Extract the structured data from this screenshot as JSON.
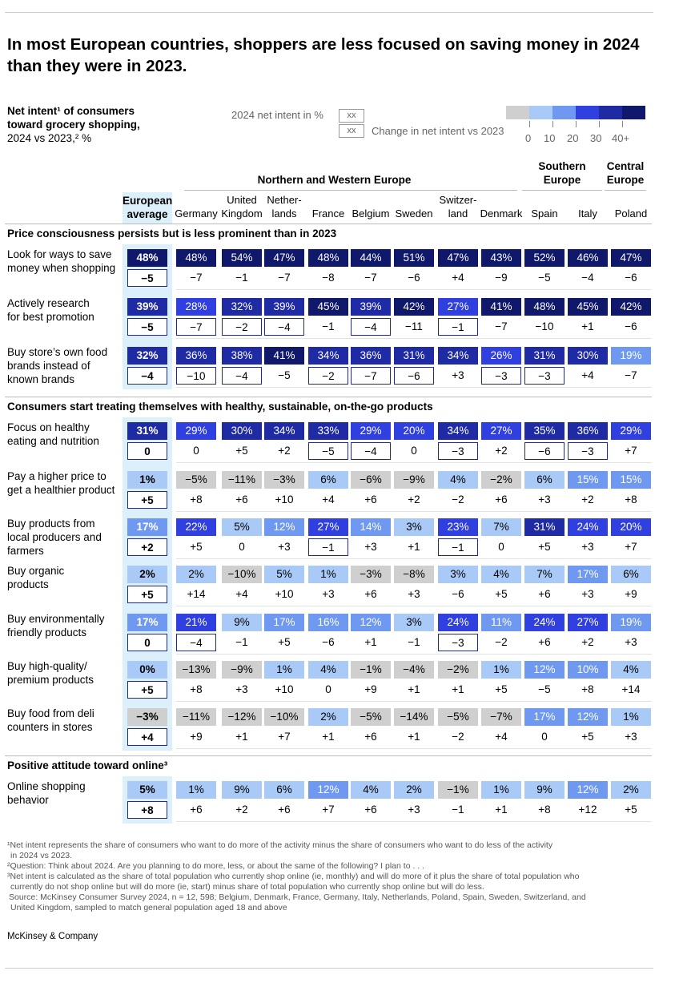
{
  "title": "In most European countries, shoppers are less focused on saving money in 2024 than they were in 2023.",
  "subtitle": {
    "line1": "Net intent¹ of consumers",
    "line2": "toward grocery shopping,",
    "line3": "2024 vs 2023,² %"
  },
  "legend": {
    "value_label": "2024 net intent in %",
    "change_label": "Change in net intent vs 2023",
    "box_text": "xx",
    "scale_ticks": [
      "0",
      "10",
      "20",
      "30",
      "40+"
    ],
    "scale_colors": [
      "#cfcfcf",
      "#a9c9f7",
      "#6f99f0",
      "#2f3fe0",
      "#1f2aa5",
      "#10186b"
    ]
  },
  "regions": {
    "north_west": "Northern and Western Europe",
    "south_line1": "Southern",
    "south_line2": "Europe",
    "central_line1": "Central",
    "central_line2": "Europe"
  },
  "eu_header": {
    "line1": "European",
    "line2": "average"
  },
  "columns": [
    {
      "l1": "",
      "l2": "Germany"
    },
    {
      "l1": "United",
      "l2": "Kingdom"
    },
    {
      "l1": "Nether-",
      "l2": "lands"
    },
    {
      "l1": "",
      "l2": "France"
    },
    {
      "l1": "",
      "l2": "Belgium"
    },
    {
      "l1": "",
      "l2": "Sweden"
    },
    {
      "l1": "Switzer-",
      "l2": "land"
    },
    {
      "l1": "",
      "l2": "Denmark"
    },
    {
      "l1": "",
      "l2": "Spain"
    },
    {
      "l1": "",
      "l2": "Italy"
    },
    {
      "l1": "",
      "l2": "Poland"
    }
  ],
  "sections": [
    {
      "title": "Price consciousness persists but is less prominent than in 2023",
      "rows": [
        {
          "label": [
            "Look for ways to save",
            "money when shopping"
          ],
          "eu": [
            "48%",
            "−5"
          ],
          "vals": [
            "48%",
            "54%",
            "47%",
            "48%",
            "44%",
            "51%",
            "47%",
            "43%",
            "52%",
            "46%",
            "47%"
          ],
          "chg": [
            "−7",
            "−1",
            "−7",
            "−8",
            "−7",
            "−6",
            "+4",
            "−9",
            "−5",
            "−4",
            "−6"
          ]
        },
        {
          "label": [
            "Actively research",
            "for best promotion"
          ],
          "eu": [
            "39%",
            "−5"
          ],
          "vals": [
            "28%",
            "32%",
            "39%",
            "45%",
            "39%",
            "42%",
            "27%",
            "41%",
            "48%",
            "45%",
            "42%"
          ],
          "chg": [
            "−7",
            "−2",
            "−4",
            "−1",
            "−4",
            "−11",
            "−1",
            "−7",
            "−10",
            "+1",
            "−6"
          ]
        },
        {
          "label": [
            "Buy store’s own food",
            "brands instead of",
            "known brands"
          ],
          "eu": [
            "32%",
            "−4"
          ],
          "vals": [
            "36%",
            "38%",
            "41%",
            "34%",
            "36%",
            "31%",
            "34%",
            "26%",
            "31%",
            "30%",
            "19%"
          ],
          "chg": [
            "−10",
            "−4",
            "−5",
            "−2",
            "−7",
            "−6",
            "+3",
            "−3",
            "−3",
            "+4",
            "−7"
          ]
        }
      ]
    },
    {
      "title": "Consumers start treating themselves with healthy, sustainable, on-the-go products",
      "rows": [
        {
          "label": [
            "Focus on healthy",
            "eating and nutrition"
          ],
          "eu": [
            "31%",
            "0"
          ],
          "vals": [
            "29%",
            "30%",
            "34%",
            "33%",
            "29%",
            "20%",
            "34%",
            "27%",
            "35%",
            "36%",
            "29%"
          ],
          "chg": [
            "0",
            "+5",
            "+2",
            "−5",
            "−4",
            "0",
            "−3",
            "+2",
            "−6",
            "−3",
            "+7"
          ]
        },
        {
          "label": [
            "Pay a higher price to",
            "get a healthier product"
          ],
          "eu": [
            "1%",
            "+5"
          ],
          "vals": [
            "−5%",
            "−11%",
            "−3%",
            "6%",
            "−6%",
            "−9%",
            "4%",
            "−2%",
            "6%",
            "15%",
            "15%"
          ],
          "chg": [
            "+8",
            "+6",
            "+10",
            "+4",
            "+6",
            "+2",
            "−2",
            "+6",
            "+3",
            "+2",
            "+8"
          ]
        },
        {
          "label": [
            "Buy products from",
            "local producers and",
            "farmers"
          ],
          "eu": [
            "17%",
            "+2"
          ],
          "vals": [
            "22%",
            "5%",
            "12%",
            "27%",
            "14%",
            "3%",
            "23%",
            "7%",
            "31%",
            "24%",
            "20%"
          ],
          "chg": [
            "+5",
            "0",
            "+3",
            "−1",
            "+3",
            "+1",
            "−1",
            "0",
            "+5",
            "+3",
            "+7"
          ]
        },
        {
          "label": [
            "Buy organic",
            "products"
          ],
          "eu": [
            "2%",
            "+5"
          ],
          "vals": [
            "2%",
            "−10%",
            "5%",
            "1%",
            "−3%",
            "−8%",
            "3%",
            "4%",
            "7%",
            "17%",
            "6%"
          ],
          "chg": [
            "+14",
            "+4",
            "+10",
            "+3",
            "+6",
            "+3",
            "−6",
            "+5",
            "+6",
            "+3",
            "+9"
          ]
        },
        {
          "label": [
            "Buy environmentally",
            "friendly products"
          ],
          "eu": [
            "17%",
            "0"
          ],
          "vals": [
            "21%",
            "9%",
            "17%",
            "16%",
            "12%",
            "3%",
            "24%",
            "11%",
            "24%",
            "27%",
            "19%"
          ],
          "chg": [
            "−4",
            "−1",
            "+5",
            "−6",
            "+1",
            "−1",
            "−3",
            "−2",
            "+6",
            "+2",
            "+3"
          ]
        },
        {
          "label": [
            "Buy high-quality/",
            "premium products"
          ],
          "eu": [
            "0%",
            "+5"
          ],
          "vals": [
            "−13%",
            "−9%",
            "1%",
            "4%",
            "−1%",
            "−4%",
            "−2%",
            "1%",
            "12%",
            "10%",
            "4%"
          ],
          "chg": [
            "+8",
            "+3",
            "+10",
            "0",
            "+9",
            "+1",
            "+1",
            "+5",
            "−5",
            "+8",
            "+14"
          ]
        },
        {
          "label": [
            "Buy food from deli",
            "counters in stores"
          ],
          "eu": [
            "−3%",
            "+4"
          ],
          "vals": [
            "−11%",
            "−12%",
            "−10%",
            "2%",
            "−5%",
            "−14%",
            "−5%",
            "−7%",
            "17%",
            "12%",
            "1%"
          ],
          "chg": [
            "+9",
            "+1",
            "+7",
            "+1",
            "+6",
            "+1",
            "−2",
            "+4",
            "0",
            "+5",
            "+3"
          ]
        }
      ]
    },
    {
      "title": "Positive attitude toward online³",
      "rows": [
        {
          "label": [
            "Online shopping",
            "behavior"
          ],
          "eu": [
            "5%",
            "+8"
          ],
          "vals": [
            "1%",
            "9%",
            "6%",
            "12%",
            "4%",
            "2%",
            "−1%",
            "1%",
            "9%",
            "12%",
            "2%"
          ],
          "chg": [
            "+6",
            "+2",
            "+6",
            "+7",
            "+6",
            "+3",
            "−1",
            "+1",
            "+8",
            "+12",
            "+5"
          ]
        }
      ]
    }
  ],
  "chart_data": {
    "type": "table",
    "title": "Net intent of consumers toward grocery shopping, 2024 vs 2023, %",
    "columns": [
      "European average",
      "Germany",
      "United Kingdom",
      "Netherlands",
      "France",
      "Belgium",
      "Sweden",
      "Switzerland",
      "Denmark",
      "Spain",
      "Italy",
      "Poland"
    ],
    "rows": [
      {
        "name": "Look for ways to save money when shopping",
        "net_intent_2024": [
          48,
          48,
          54,
          47,
          48,
          44,
          51,
          47,
          43,
          52,
          46,
          47
        ],
        "change_vs_2023": [
          -5,
          -7,
          -1,
          -7,
          -8,
          -7,
          -6,
          4,
          -9,
          -5,
          -4,
          -6
        ]
      },
      {
        "name": "Actively research for best promotion",
        "net_intent_2024": [
          39,
          28,
          32,
          39,
          45,
          39,
          42,
          27,
          41,
          48,
          45,
          42
        ],
        "change_vs_2023": [
          -5,
          -7,
          -2,
          -4,
          -1,
          -4,
          -11,
          -1,
          -7,
          -10,
          1,
          -6
        ]
      },
      {
        "name": "Buy store's own food brands instead of known brands",
        "net_intent_2024": [
          32,
          36,
          38,
          41,
          34,
          36,
          31,
          34,
          26,
          31,
          30,
          19
        ],
        "change_vs_2023": [
          -4,
          -10,
          -4,
          -5,
          -2,
          -7,
          -6,
          3,
          -3,
          -3,
          4,
          -7
        ]
      },
      {
        "name": "Focus on healthy eating and nutrition",
        "net_intent_2024": [
          31,
          29,
          30,
          34,
          33,
          29,
          20,
          34,
          27,
          35,
          36,
          29
        ],
        "change_vs_2023": [
          0,
          0,
          5,
          2,
          -5,
          -4,
          0,
          -3,
          2,
          -6,
          -3,
          7
        ]
      },
      {
        "name": "Pay a higher price to get a healthier product",
        "net_intent_2024": [
          1,
          -5,
          -11,
          -3,
          6,
          -6,
          -9,
          4,
          -2,
          6,
          15,
          15
        ],
        "change_vs_2023": [
          5,
          8,
          6,
          10,
          4,
          6,
          2,
          -2,
          6,
          3,
          2,
          8
        ]
      },
      {
        "name": "Buy products from local producers and farmers",
        "net_intent_2024": [
          17,
          22,
          5,
          12,
          27,
          14,
          3,
          23,
          7,
          31,
          24,
          20
        ],
        "change_vs_2023": [
          2,
          5,
          0,
          3,
          -1,
          3,
          1,
          -1,
          0,
          5,
          3,
          7
        ]
      },
      {
        "name": "Buy organic products",
        "net_intent_2024": [
          2,
          2,
          -10,
          5,
          1,
          -3,
          -8,
          3,
          4,
          7,
          17,
          6
        ],
        "change_vs_2023": [
          5,
          14,
          4,
          10,
          3,
          6,
          3,
          -6,
          5,
          6,
          3,
          9
        ]
      },
      {
        "name": "Buy environmentally friendly products",
        "net_intent_2024": [
          17,
          21,
          9,
          17,
          16,
          12,
          3,
          24,
          11,
          24,
          27,
          19
        ],
        "change_vs_2023": [
          0,
          -4,
          -1,
          5,
          -6,
          1,
          -1,
          -3,
          -2,
          6,
          2,
          3
        ]
      },
      {
        "name": "Buy high-quality/premium products",
        "net_intent_2024": [
          0,
          -13,
          -9,
          1,
          4,
          -1,
          -4,
          -2,
          1,
          12,
          10,
          4
        ],
        "change_vs_2023": [
          5,
          8,
          3,
          10,
          0,
          9,
          1,
          1,
          5,
          -5,
          8,
          14
        ]
      },
      {
        "name": "Buy food from deli counters in stores",
        "net_intent_2024": [
          -3,
          -11,
          -12,
          -10,
          2,
          -5,
          -14,
          -5,
          -7,
          17,
          12,
          1
        ],
        "change_vs_2023": [
          4,
          9,
          1,
          7,
          1,
          6,
          1,
          -2,
          4,
          0,
          5,
          3
        ]
      },
      {
        "name": "Online shopping behavior",
        "net_intent_2024": [
          5,
          1,
          9,
          6,
          12,
          4,
          2,
          -1,
          1,
          9,
          12,
          2
        ],
        "change_vs_2023": [
          8,
          6,
          2,
          6,
          7,
          6,
          3,
          -1,
          1,
          8,
          12,
          5
        ]
      }
    ]
  },
  "footnotes": [
    "¹Net intent represents the share of consumers who want to do more of the activity minus the share of consumers who want to do less of the activity",
    "in 2024 vs 2023.",
    "²Question: Think about 2024. Are you planning to do more, less, or about the same of the following? I plan to . . .",
    "³Net intent is calculated as the share of total population who currently shop online (ie, monthly) and will do more of it plus the share of total population who",
    "currently do not shop online but will do more (ie, start) minus share of total population who currently shop online but will do less.",
    "Source: McKinsey Consumer Survey 2024, n = 12, 598; Belgium, Denmark, France, Germany, Italy, Netherlands, Poland, Spain, Sweden, Switzerland, and",
    "United Kingdom, sampled to match general population aged 18 and above"
  ],
  "brand": "McKinsey & Company"
}
